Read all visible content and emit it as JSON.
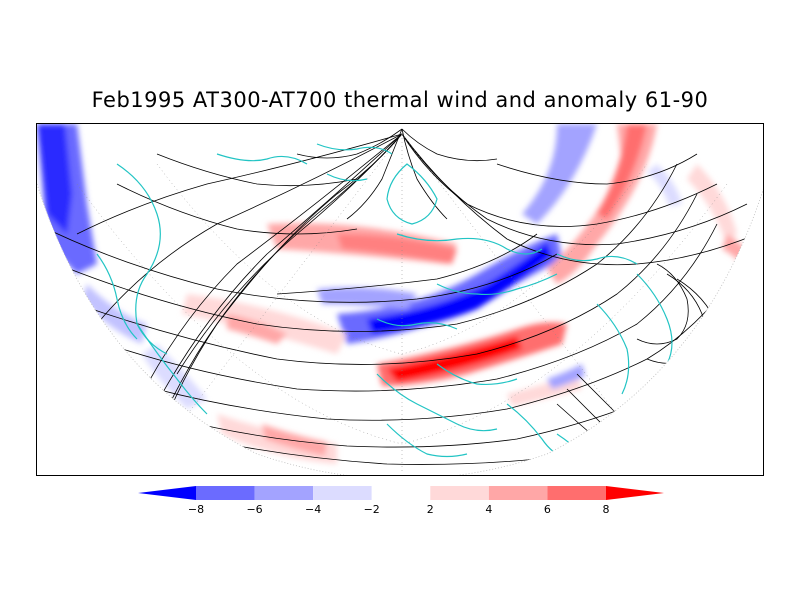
{
  "title": "Feb1995 AT300-AT700 thermal wind and anomaly 61-90",
  "map": {
    "projection": "north polar stereographic (lower half visible)",
    "fields": [
      "thermal wind streamlines",
      "thermal wind anomaly (shaded)"
    ],
    "coastline_color": "#22c4c4",
    "streamline_color": "#000000"
  },
  "colorbar": {
    "ticks": [
      "-8",
      "-6",
      "-4",
      "-2",
      "2",
      "4",
      "6",
      "8"
    ],
    "colors": [
      "#0000ff",
      "#6b6bff",
      "#a3a3ff",
      "#dcdcff",
      "#ffffff",
      "#ffd9d9",
      "#ffa7a7",
      "#ff6e6e",
      "#ff0000"
    ]
  }
}
